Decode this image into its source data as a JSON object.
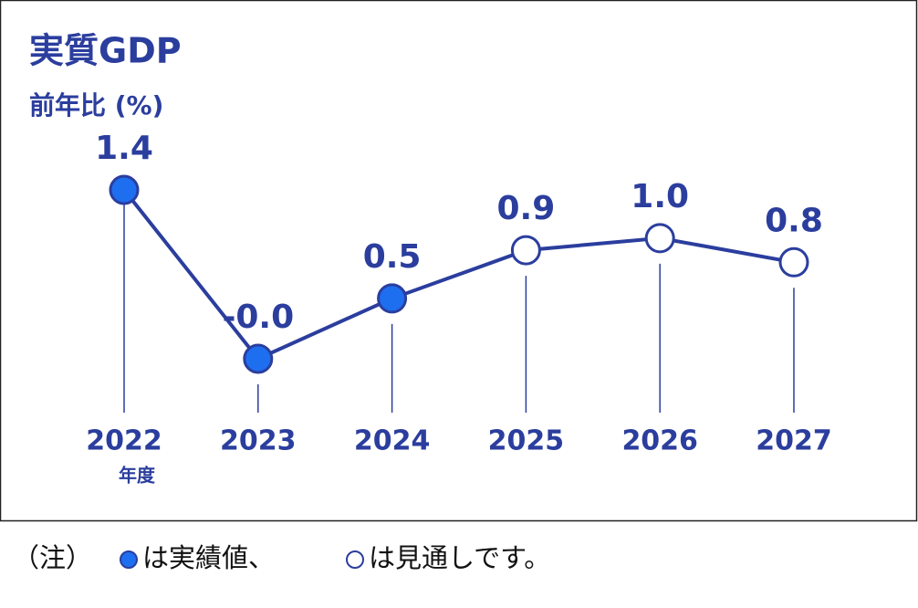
{
  "chart_data": {
    "type": "line",
    "title": "実質GDP",
    "subtitle": "前年比 (%)",
    "categories": [
      "2022",
      "2023",
      "2024",
      "2025",
      "2026",
      "2027"
    ],
    "x_unit": "年度",
    "values": [
      1.4,
      0,
      0.5,
      0.9,
      1,
      0.8
    ],
    "value_labels": [
      "1.4",
      "-0.0",
      "0.5",
      "0.9",
      "1.0",
      "0.8"
    ],
    "color": "#2b3e9e",
    "marker_fill": [
      "#1e6ef0",
      "#1e6ef0",
      "#1e6ef0",
      "#ffffff",
      "#ffffff",
      "#ffffff"
    ],
    "note": {
      "prefix": "（注）",
      "actual": "は実績値、",
      "forecast": "は見通しです。"
    }
  }
}
